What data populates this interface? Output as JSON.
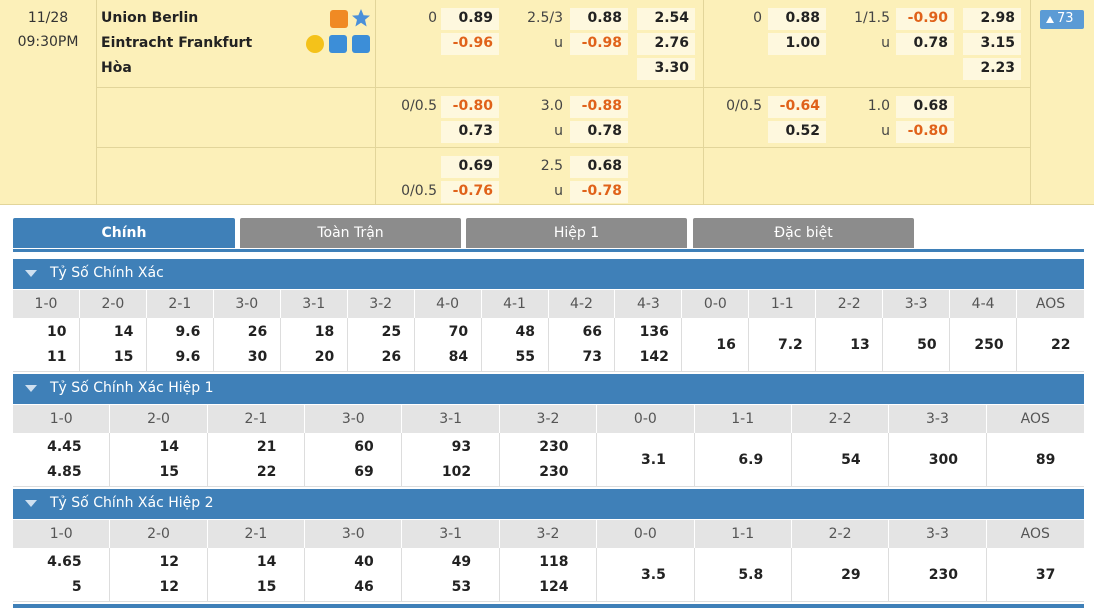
{
  "match": {
    "date": "11/28",
    "time": "09:30PM",
    "home": "Union Berlin",
    "away": "Eintracht Frankfurt",
    "draw": "Hòa",
    "more": "73"
  },
  "odds": [
    {
      "ft_hdp": {
        "home_line": "0",
        "home": "0.89",
        "away": "-0.96"
      },
      "ft_ou": {
        "line": "2.5/3",
        "over": "0.88",
        "under_mark": "u",
        "under": "-0.98"
      },
      "ft_1x2": {
        "home": "2.54",
        "away": "2.76",
        "draw": "3.30"
      },
      "h1_hdp": {
        "home_line": "0",
        "home": "0.88",
        "away": "1.00"
      },
      "h1_ou": {
        "line": "1/1.5",
        "over": "-0.90",
        "under_mark": "u",
        "under": "0.78"
      },
      "h1_1x2": {
        "home": "2.98",
        "away": "3.15",
        "draw": "2.23"
      }
    },
    {
      "ft_hdp": {
        "home_line": "0/0.5",
        "home": "-0.80",
        "away": "0.73"
      },
      "ft_ou": {
        "line": "3.0",
        "over": "-0.88",
        "under_mark": "u",
        "under": "0.78"
      },
      "h1_hdp": {
        "home_line": "0/0.5",
        "home": "-0.64",
        "away": "0.52"
      },
      "h1_ou": {
        "line": "1.0",
        "over": "0.68",
        "under_mark": "u",
        "under": "-0.80"
      }
    },
    {
      "ft_hdp": {
        "away_line": "0/0.5",
        "home": "0.69",
        "away": "-0.76"
      },
      "ft_ou": {
        "line": "2.5",
        "over": "0.68",
        "under_mark": "u",
        "under": "-0.78"
      }
    }
  ],
  "tabs": [
    "Chính",
    "Toàn Trận",
    "Hiệp 1",
    "Đặc biệt"
  ],
  "sections": [
    {
      "title": "Tỷ Số Chính Xác",
      "headers": [
        "1-0",
        "2-0",
        "2-1",
        "3-0",
        "3-1",
        "3-2",
        "4-0",
        "4-1",
        "4-2",
        "4-3",
        "0-0",
        "1-1",
        "2-2",
        "3-3",
        "4-4",
        "AOS"
      ],
      "cells": [
        [
          "10",
          "11"
        ],
        [
          "14",
          "15"
        ],
        [
          "9.6",
          "9.6"
        ],
        [
          "26",
          "30"
        ],
        [
          "18",
          "20"
        ],
        [
          "25",
          "26"
        ],
        [
          "70",
          "84"
        ],
        [
          "48",
          "55"
        ],
        [
          "66",
          "73"
        ],
        [
          "136",
          "142"
        ],
        [
          "16"
        ],
        [
          "7.2"
        ],
        [
          "13"
        ],
        [
          "50"
        ],
        [
          "250"
        ],
        [
          "22"
        ]
      ]
    },
    {
      "title": "Tỷ Số Chính Xác Hiệp 1",
      "headers": [
        "1-0",
        "2-0",
        "2-1",
        "3-0",
        "3-1",
        "3-2",
        "0-0",
        "1-1",
        "2-2",
        "3-3",
        "AOS"
      ],
      "cells": [
        [
          "4.45",
          "4.85"
        ],
        [
          "14",
          "15"
        ],
        [
          "21",
          "22"
        ],
        [
          "60",
          "69"
        ],
        [
          "93",
          "102"
        ],
        [
          "230",
          "230"
        ],
        [
          "3.1"
        ],
        [
          "6.9"
        ],
        [
          "54"
        ],
        [
          "300"
        ],
        [
          "89"
        ]
      ]
    },
    {
      "title": "Tỷ Số Chính Xác Hiệp 2",
      "headers": [
        "1-0",
        "2-0",
        "2-1",
        "3-0",
        "3-1",
        "3-2",
        "0-0",
        "1-1",
        "2-2",
        "3-3",
        "AOS"
      ],
      "cells": [
        [
          "4.65",
          "5"
        ],
        [
          "12",
          "12"
        ],
        [
          "14",
          "15"
        ],
        [
          "40",
          "46"
        ],
        [
          "49",
          "53"
        ],
        [
          "118",
          "124"
        ],
        [
          "3.5"
        ],
        [
          "5.8"
        ],
        [
          "29"
        ],
        [
          "230"
        ],
        [
          "37"
        ]
      ]
    }
  ]
}
